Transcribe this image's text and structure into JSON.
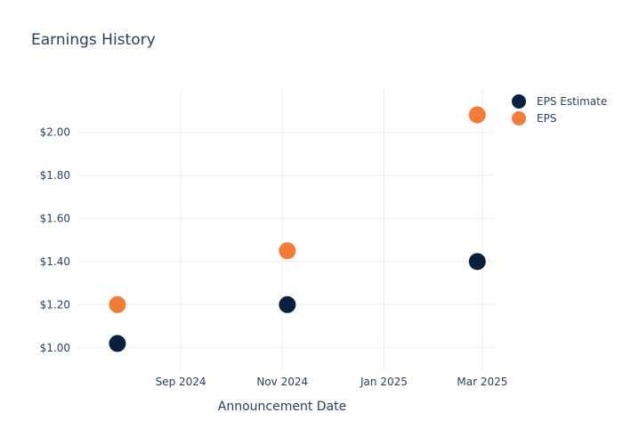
{
  "chart_data": {
    "type": "scatter",
    "title": "Earnings History",
    "xlabel": "Announcement Date",
    "ylabel": "",
    "x_tick_labels": [
      "Sep 2024",
      "Nov 2024",
      "Jan 2025",
      "Mar 2025"
    ],
    "x_ticks": [
      "2024-09-01",
      "2024-11-01",
      "2025-01-01",
      "2025-03-01"
    ],
    "xlim": [
      "2024-07-01",
      "2025-03-08"
    ],
    "y_tick_labels": [
      "$1.00",
      "$1.20",
      "$1.40",
      "$1.60",
      "$1.80",
      "$2.00"
    ],
    "y_ticks": [
      1.0,
      1.2,
      1.4,
      1.6,
      1.8,
      2.0
    ],
    "ylim": [
      0.9,
      2.2
    ],
    "grid": true,
    "legend": "top-right",
    "series": [
      {
        "name": "EPS Estimate",
        "color": "#0b1f3f",
        "x": [
          "2024-07-25",
          "2024-11-04",
          "2025-02-26"
        ],
        "y": [
          1.02,
          1.2,
          1.4
        ]
      },
      {
        "name": "EPS",
        "color": "#f47c37",
        "x": [
          "2024-07-25",
          "2024-11-04",
          "2025-02-26"
        ],
        "y": [
          1.2,
          1.45,
          2.08
        ]
      }
    ]
  }
}
